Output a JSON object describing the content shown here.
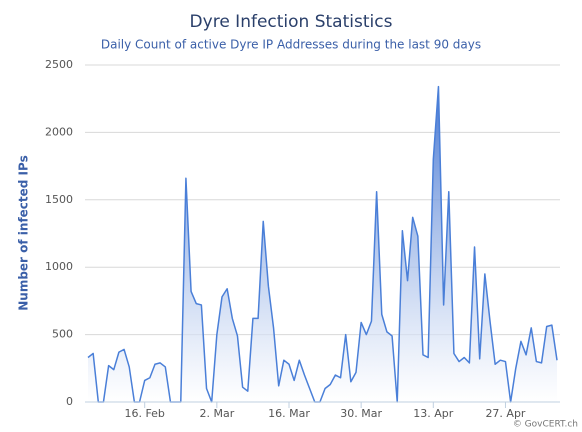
{
  "chart_data": {
    "type": "area",
    "title": "Dyre Infection Statistics",
    "subtitle": "Daily Count of active Dyre IP Addresses during the last 90 days",
    "y_label": "Number of infected IPs",
    "credit": "© GovCERT.ch",
    "color": "#4a7fd8",
    "grid": true,
    "ylim": [
      0,
      2500
    ],
    "yticks": [
      0,
      500,
      1000,
      1500,
      2000,
      2500
    ],
    "categories": [
      null,
      null,
      null,
      null,
      null,
      null,
      null,
      null,
      null,
      null,
      null,
      "16. Feb",
      null,
      null,
      null,
      null,
      null,
      null,
      null,
      null,
      null,
      null,
      null,
      null,
      null,
      "2. Mar",
      null,
      null,
      null,
      null,
      null,
      null,
      null,
      null,
      null,
      null,
      null,
      null,
      null,
      "16. Mar",
      null,
      null,
      null,
      null,
      null,
      null,
      null,
      null,
      null,
      null,
      null,
      null,
      null,
      "30. Mar",
      null,
      null,
      null,
      null,
      null,
      null,
      null,
      null,
      null,
      null,
      null,
      null,
      null,
      "13. Apr",
      null,
      null,
      null,
      null,
      null,
      null,
      null,
      null,
      null,
      null,
      null,
      null,
      null,
      "27. Apr",
      null,
      null,
      null,
      null,
      null,
      null,
      null,
      null,
      null,
      null
    ],
    "values": [
      330,
      360,
      0,
      0,
      270,
      240,
      370,
      390,
      260,
      0,
      0,
      160,
      180,
      280,
      290,
      260,
      0,
      0,
      0,
      1660,
      820,
      730,
      720,
      100,
      0,
      500,
      780,
      840,
      620,
      490,
      110,
      80,
      620,
      620,
      1340,
      860,
      550,
      120,
      310,
      280,
      160,
      310,
      200,
      100,
      0,
      0,
      100,
      130,
      200,
      180,
      500,
      150,
      220,
      590,
      500,
      600,
      1560,
      650,
      520,
      490,
      0,
      1270,
      900,
      1370,
      1230,
      350,
      330,
      1800,
      2340,
      720,
      1560,
      360,
      300,
      330,
      290,
      1150,
      320,
      950,
      600,
      280,
      310,
      300,
      0,
      250,
      450,
      350,
      550,
      300,
      290,
      560,
      570,
      310
    ]
  }
}
